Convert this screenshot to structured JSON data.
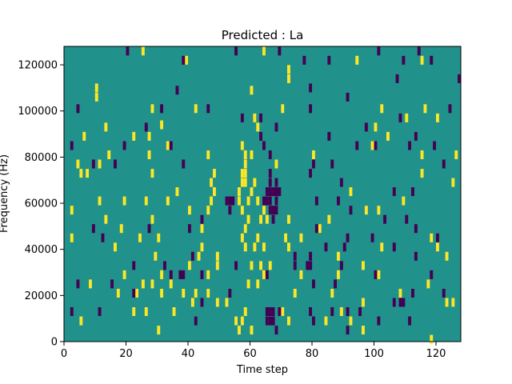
{
  "chart_data": {
    "type": "heatmap",
    "title": "Predicted : La",
    "xlabel": "Time step",
    "ylabel": "Frequency (Hz)",
    "xlim": [
      0,
      128
    ],
    "ylim": [
      0,
      128000
    ],
    "xticks": [
      0,
      20,
      40,
      60,
      80,
      100,
      120
    ],
    "xtick_labels": [
      "0",
      "20",
      "40",
      "60",
      "80",
      "100",
      "120"
    ],
    "yticks": [
      0,
      20000,
      40000,
      60000,
      80000,
      100000,
      120000
    ],
    "ytick_labels": [
      "0",
      "20000",
      "40000",
      "60000",
      "80000",
      "100000",
      "120000"
    ],
    "grid": false,
    "legend": "none",
    "colormap": "viridis",
    "colors": {
      "background": "#21918c",
      "high": "#fde725",
      "low": "#440154"
    },
    "cells_note_units": "time step, frequency Hz",
    "yellow_cells": [
      [
        25,
        126000
      ],
      [
        64,
        126000
      ],
      [
        39,
        122000
      ],
      [
        72,
        118000
      ],
      [
        72,
        114000
      ],
      [
        94,
        122000
      ],
      [
        115,
        122000
      ],
      [
        10,
        110000
      ],
      [
        10,
        106000
      ],
      [
        28,
        101000
      ],
      [
        42,
        101000
      ],
      [
        70,
        101000
      ],
      [
        60,
        109000
      ],
      [
        102,
        101000
      ],
      [
        110,
        97000
      ],
      [
        116,
        101000
      ],
      [
        120,
        97000
      ],
      [
        6,
        89000
      ],
      [
        13,
        93000
      ],
      [
        22,
        89000
      ],
      [
        27,
        89000
      ],
      [
        31,
        94000
      ],
      [
        61,
        97000
      ],
      [
        62,
        93000
      ],
      [
        100,
        93000
      ],
      [
        104,
        89000
      ],
      [
        14,
        81000
      ],
      [
        27,
        81000
      ],
      [
        33,
        85000
      ],
      [
        46,
        81000
      ],
      [
        57,
        85000
      ],
      [
        58,
        81000
      ],
      [
        58,
        77000
      ],
      [
        58,
        73000
      ],
      [
        58,
        69000
      ],
      [
        57,
        73000
      ],
      [
        57,
        69000
      ],
      [
        60,
        81000
      ],
      [
        68,
        77000
      ],
      [
        80,
        81000
      ],
      [
        99,
        85000
      ],
      [
        115,
        81000
      ],
      [
        126,
        81000
      ],
      [
        4,
        77000
      ],
      [
        5,
        73000
      ],
      [
        7,
        73000
      ],
      [
        11,
        77000
      ],
      [
        28,
        73000
      ],
      [
        48,
        73000
      ],
      [
        47,
        69000
      ],
      [
        36,
        65000
      ],
      [
        48,
        65000
      ],
      [
        47,
        61000
      ],
      [
        46,
        57000
      ],
      [
        56,
        65000
      ],
      [
        56,
        61000
      ],
      [
        57,
        57000
      ],
      [
        59,
        61000
      ],
      [
        60,
        65000
      ],
      [
        61,
        69000
      ],
      [
        62,
        61000
      ],
      [
        64,
        57000
      ],
      [
        65,
        53000
      ],
      [
        63,
        53000
      ],
      [
        59,
        53000
      ],
      [
        58,
        49000
      ],
      [
        57,
        45000
      ],
      [
        58,
        41000
      ],
      [
        61,
        41000
      ],
      [
        62,
        45000
      ],
      [
        64,
        41000
      ],
      [
        72,
        53000
      ],
      [
        72,
        41000
      ],
      [
        92,
        65000
      ],
      [
        97,
        57000
      ],
      [
        109,
        61000
      ],
      [
        125,
        69000
      ],
      [
        115,
        73000
      ],
      [
        2,
        57000
      ],
      [
        11,
        61000
      ],
      [
        19,
        61000
      ],
      [
        26,
        61000
      ],
      [
        33,
        61000
      ],
      [
        40,
        57000
      ],
      [
        13,
        53000
      ],
      [
        18,
        49000
      ],
      [
        28,
        53000
      ],
      [
        44,
        49000
      ],
      [
        24,
        45000
      ],
      [
        2,
        45000
      ],
      [
        16,
        41000
      ],
      [
        30,
        45000
      ],
      [
        44,
        41000
      ],
      [
        43,
        37000
      ],
      [
        49,
        37000
      ],
      [
        76,
        45000
      ],
      [
        82,
        49000
      ],
      [
        85,
        53000
      ],
      [
        101,
        57000
      ],
      [
        118,
        45000
      ],
      [
        102,
        41000
      ],
      [
        120,
        41000
      ],
      [
        40,
        33000
      ],
      [
        29,
        37000
      ],
      [
        49,
        33000
      ],
      [
        60,
        33000
      ],
      [
        63,
        33000
      ],
      [
        66,
        33000
      ],
      [
        71,
        45000
      ],
      [
        88,
        37000
      ],
      [
        96,
        33000
      ],
      [
        19,
        29000
      ],
      [
        31,
        29000
      ],
      [
        46,
        29000
      ],
      [
        59,
        25000
      ],
      [
        62,
        25000
      ],
      [
        64,
        29000
      ],
      [
        76,
        29000
      ],
      [
        88,
        29000
      ],
      [
        101,
        29000
      ],
      [
        123,
        37000
      ],
      [
        8,
        25000
      ],
      [
        17,
        21000
      ],
      [
        23,
        21000
      ],
      [
        25,
        25000
      ],
      [
        28,
        25000
      ],
      [
        31,
        21000
      ],
      [
        34,
        25000
      ],
      [
        38,
        21000
      ],
      [
        46,
        21000
      ],
      [
        49,
        17000
      ],
      [
        41,
        17000
      ],
      [
        35,
        13000
      ],
      [
        58,
        13000
      ],
      [
        57,
        9000
      ],
      [
        55,
        9000
      ],
      [
        56,
        5000
      ],
      [
        60,
        5000
      ],
      [
        70,
        13000
      ],
      [
        72,
        9000
      ],
      [
        74,
        21000
      ],
      [
        86,
        21000
      ],
      [
        89,
        13000
      ],
      [
        92,
        9000
      ],
      [
        96,
        17000
      ],
      [
        108,
        21000
      ],
      [
        117,
        25000
      ],
      [
        123,
        17000
      ],
      [
        5,
        9000
      ],
      [
        30,
        5000
      ],
      [
        22,
        13000
      ],
      [
        26,
        13000
      ],
      [
        42,
        21000
      ],
      [
        52,
        17000
      ],
      [
        84,
        9000
      ],
      [
        96,
        5000
      ],
      [
        118,
        1000
      ],
      [
        125,
        17000
      ]
    ],
    "purple_cells": [
      [
        20,
        126000
      ],
      [
        55,
        126000
      ],
      [
        69,
        126000
      ],
      [
        101,
        126000
      ],
      [
        114,
        126000
      ],
      [
        38,
        122000
      ],
      [
        77,
        122000
      ],
      [
        85,
        122000
      ],
      [
        109,
        122000
      ],
      [
        118,
        122000
      ],
      [
        79,
        110000
      ],
      [
        91,
        106000
      ],
      [
        107,
        114000
      ],
      [
        127,
        114000
      ],
      [
        36,
        109000
      ],
      [
        4,
        101000
      ],
      [
        31,
        101000
      ],
      [
        46,
        101000
      ],
      [
        79,
        101000
      ],
      [
        108,
        97000
      ],
      [
        124,
        101000
      ],
      [
        26,
        93000
      ],
      [
        57,
        97000
      ],
      [
        63,
        97000
      ],
      [
        68,
        93000
      ],
      [
        85,
        89000
      ],
      [
        97,
        93000
      ],
      [
        113,
        89000
      ],
      [
        2,
        85000
      ],
      [
        19,
        85000
      ],
      [
        34,
        85000
      ],
      [
        63,
        89000
      ],
      [
        64,
        85000
      ],
      [
        66,
        81000
      ],
      [
        94,
        85000
      ],
      [
        100,
        85000
      ],
      [
        111,
        85000
      ],
      [
        119,
        85000
      ],
      [
        9,
        77000
      ],
      [
        16,
        77000
      ],
      [
        38,
        77000
      ],
      [
        80,
        77000
      ],
      [
        86,
        77000
      ],
      [
        122,
        77000
      ],
      [
        66,
        73000
      ],
      [
        66,
        69000
      ],
      [
        67,
        65000
      ],
      [
        68,
        69000
      ],
      [
        66,
        61000
      ],
      [
        68,
        61000
      ],
      [
        66,
        57000
      ],
      [
        67,
        53000
      ],
      [
        79,
        73000
      ],
      [
        89,
        69000
      ],
      [
        106,
        65000
      ],
      [
        112,
        65000
      ],
      [
        52,
        61000
      ],
      [
        53,
        57000
      ],
      [
        81,
        61000
      ],
      [
        88,
        61000
      ],
      [
        92,
        57000
      ],
      [
        103,
        53000
      ],
      [
        110,
        53000
      ],
      [
        40,
        49000
      ],
      [
        44,
        53000
      ],
      [
        81,
        49000
      ],
      [
        9,
        49000
      ],
      [
        113,
        49000
      ],
      [
        12,
        45000
      ],
      [
        27,
        49000
      ],
      [
        90,
        41000
      ],
      [
        91,
        45000
      ],
      [
        99,
        45000
      ],
      [
        84,
        41000
      ],
      [
        120,
        45000
      ],
      [
        106,
        41000
      ],
      [
        41,
        37000
      ],
      [
        74,
        37000
      ],
      [
        79,
        37000
      ],
      [
        74,
        33000
      ],
      [
        89,
        33000
      ],
      [
        113,
        37000
      ],
      [
        32,
        33000
      ],
      [
        22,
        33000
      ],
      [
        44,
        29000
      ],
      [
        55,
        33000
      ],
      [
        65,
        29000
      ],
      [
        80,
        25000
      ],
      [
        87,
        25000
      ],
      [
        100,
        29000
      ],
      [
        4,
        25000
      ],
      [
        15,
        25000
      ],
      [
        34,
        29000
      ],
      [
        65,
        9000
      ],
      [
        67,
        9000
      ],
      [
        67,
        13000
      ],
      [
        69,
        13000
      ],
      [
        68,
        5000
      ],
      [
        79,
        13000
      ],
      [
        86,
        13000
      ],
      [
        91,
        13000
      ],
      [
        95,
        13000
      ],
      [
        106,
        17000
      ],
      [
        112,
        21000
      ],
      [
        122,
        21000
      ],
      [
        2,
        13000
      ],
      [
        11,
        13000
      ],
      [
        42,
        9000
      ],
      [
        80,
        9000
      ],
      [
        101,
        9000
      ],
      [
        91,
        5000
      ],
      [
        111,
        9000
      ],
      [
        53,
        21000
      ],
      [
        118,
        29000
      ],
      [
        22,
        21000
      ],
      [
        44,
        17000
      ]
    ],
    "wide_purple_cells": [
      [
        53,
        61000
      ],
      [
        64,
        61000
      ],
      [
        67,
        57000
      ],
      [
        68,
        65000
      ],
      [
        65,
        65000
      ],
      [
        65,
        13000
      ],
      [
        66,
        9000
      ],
      [
        78,
        33000
      ],
      [
        37,
        29000
      ],
      [
        108,
        17000
      ]
    ]
  }
}
